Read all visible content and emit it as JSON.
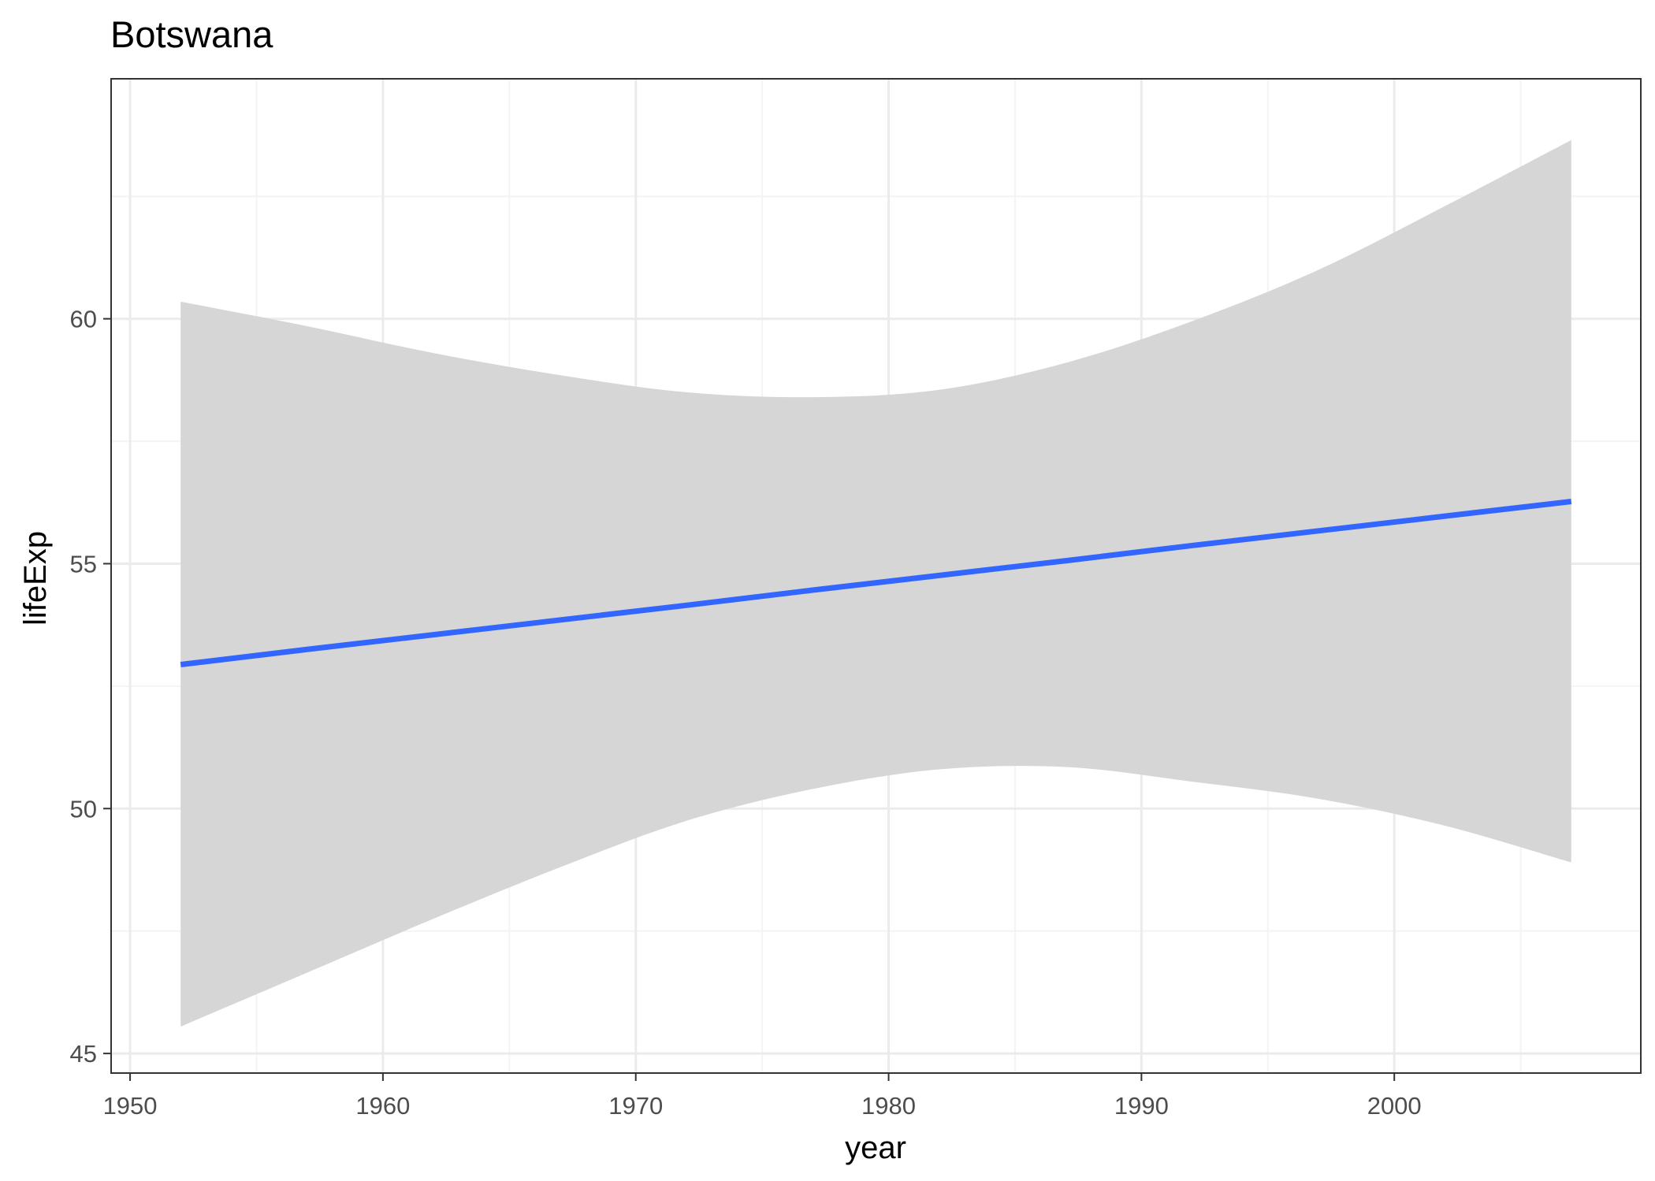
{
  "chart_data": {
    "type": "line",
    "title": "Botswana",
    "xlabel": "year",
    "ylabel": "lifeExp",
    "xlim": [
      1949.25,
      2009.75
    ],
    "ylim": [
      44.6,
      64.9
    ],
    "x_ticks": [
      1950,
      1960,
      1970,
      1980,
      1990,
      2000
    ],
    "y_ticks": [
      45,
      50,
      55,
      60
    ],
    "grid": true,
    "x": [
      1952,
      1957,
      1962,
      1967,
      1972,
      1977,
      1982,
      1987,
      1992,
      1997,
      2002,
      2007
    ],
    "series": [
      {
        "values": [
          52.94,
          53.25,
          53.55,
          53.85,
          54.15,
          54.46,
          54.76,
          55.06,
          55.37,
          55.67,
          55.97,
          56.27
        ]
      }
    ],
    "ribbon": {
      "lower": [
        45.55,
        46.65,
        47.75,
        48.8,
        49.75,
        50.4,
        50.8,
        50.85,
        50.55,
        50.2,
        49.65,
        48.9
      ],
      "upper": [
        60.35,
        59.85,
        59.3,
        58.85,
        58.5,
        58.4,
        58.55,
        59.1,
        59.95,
        61.0,
        62.3,
        63.65
      ]
    },
    "colors": {
      "line": "#3366ff",
      "ribbon": "#d6d6d6",
      "grid_major": "#ebebeb",
      "grid_minor": "#f4f4f4",
      "panel_border": "#333333"
    }
  }
}
